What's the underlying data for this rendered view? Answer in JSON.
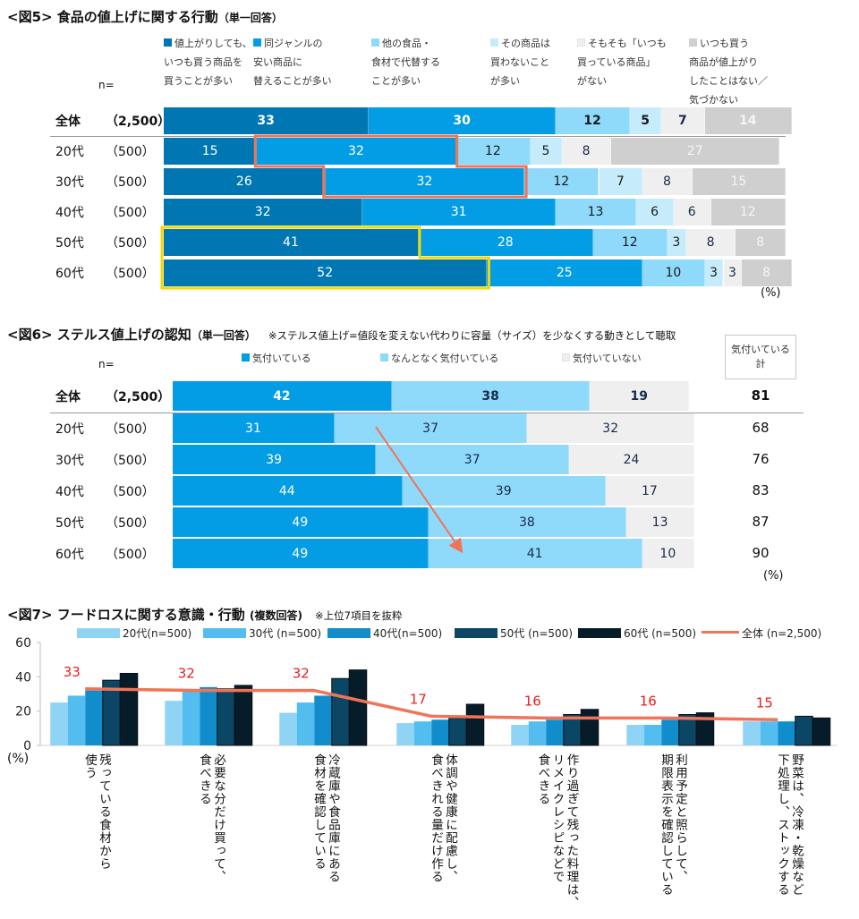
{
  "chart_data": [
    {
      "id": "fig5",
      "type": "bar",
      "orientation": "horizontal-stacked-100",
      "title": "<図5> 食品の値上げに関する行動",
      "subtitle": "（単一回答）",
      "n_label": "n=",
      "unit_label": "(%)",
      "legend": [
        {
          "label": "値上がりしても、\nいつも買う商品を\n買うことが多い",
          "color": "#0077b3"
        },
        {
          "label": "同ジャンルの\n安い商品に\n替えることが多い",
          "color": "#039de6"
        },
        {
          "label": "他の食品・\n食材で代替する\nことが多い",
          "color": "#8fd9fb"
        },
        {
          "label": "その商品は\n買わないこと\nが多い",
          "color": "#c6ecfc"
        },
        {
          "label": "そもそも「いつも\n買っている商品」\nがない",
          "color": "#efefef"
        },
        {
          "label": "いつも買う\n商品が値上がり\nしたことはない／\n気づかない",
          "color": "#cfcfcf"
        }
      ],
      "categories": [
        {
          "label": "全体",
          "n": "（2,500）",
          "bold": true
        },
        {
          "label": "20代",
          "n": "（500）"
        },
        {
          "label": "30代",
          "n": "（500）"
        },
        {
          "label": "40代",
          "n": "（500）"
        },
        {
          "label": "50代",
          "n": "（500）"
        },
        {
          "label": "60代",
          "n": "（500）"
        }
      ],
      "rows": [
        [
          33,
          30,
          12,
          5,
          7,
          14
        ],
        [
          15,
          32,
          12,
          5,
          8,
          27
        ],
        [
          26,
          32,
          12,
          7,
          8,
          15
        ],
        [
          32,
          31,
          13,
          6,
          6,
          12
        ],
        [
          41,
          28,
          12,
          3,
          8,
          8
        ],
        [
          52,
          25,
          10,
          3,
          3,
          8
        ]
      ],
      "label_colors": [
        "#ffffff",
        "#ffffff",
        "#1a1a1a",
        "#1a1a1a",
        "#1a2a4a",
        "#f5f5f5"
      ],
      "highlights": [
        {
          "series": 1,
          "rows": [
            1,
            2
          ],
          "color": "#f07457"
        },
        {
          "series": 0,
          "rows": [
            4,
            5
          ],
          "color": "#f5d800"
        }
      ],
      "xlim": [
        0,
        100
      ]
    },
    {
      "id": "fig6",
      "type": "bar",
      "orientation": "horizontal-stacked-100",
      "title": "<図6> ステルス値上げの認知",
      "subtitle": "（単一回答）",
      "note": "※ステルス値上げ=値段を変えない代わりに容量（サイズ）を少なくする動きとして聴取",
      "n_label": "n=",
      "unit_label": "(%)",
      "legend": [
        {
          "label": "気付いている",
          "color": "#039de6"
        },
        {
          "label": "なんとなく気付いている",
          "color": "#8fd9fb"
        },
        {
          "label": "気付いていない",
          "color": "#efefef"
        }
      ],
      "total_header": "気付いている\n計",
      "categories": [
        {
          "label": "全体",
          "n": "（2,500）",
          "bold": true
        },
        {
          "label": "20代",
          "n": "（500）"
        },
        {
          "label": "30代",
          "n": "（500）"
        },
        {
          "label": "40代",
          "n": "（500）"
        },
        {
          "label": "50代",
          "n": "（500）"
        },
        {
          "label": "60代",
          "n": "（500）"
        }
      ],
      "rows": [
        [
          42,
          38,
          19
        ],
        [
          31,
          37,
          32
        ],
        [
          39,
          37,
          24
        ],
        [
          44,
          39,
          17
        ],
        [
          49,
          38,
          13
        ],
        [
          49,
          41,
          10
        ]
      ],
      "totals": [
        81,
        68,
        76,
        83,
        87,
        90
      ],
      "label_colors": [
        "#ffffff",
        "#1a2a4a",
        "#1a2a4a"
      ],
      "annotation": {
        "type": "arrow",
        "from_row": 1,
        "to_row": 5,
        "series": 1,
        "color": "#f07457"
      },
      "xlim": [
        0,
        100
      ]
    },
    {
      "id": "fig7",
      "type": "bar",
      "title": "<図7> フードロスに関する意識・行動",
      "subtitle": "(複数回答)",
      "note": "※上位7項目を抜粋",
      "ylabel": "(%)",
      "ylim": [
        0,
        60
      ],
      "yticks": [
        0,
        20,
        40,
        60
      ],
      "categories": [
        "残っている食材から\n使う",
        "必要な分だけ買って、\n食べきる",
        "冷蔵庫や食品庫にある\n食材を確認している",
        "体調や健康に配慮し、\n食べきれる量だけ作る",
        "作り過ぎて残った料理は、\nリメイクレシピなどで\n食べきる",
        "利用予定と照らして、\n期限表示を確認している",
        "野菜は、冷凍・乾燥など\n下処理し、ストックする"
      ],
      "series": [
        {
          "name": "20代(n=500)",
          "color": "#8fd3f5",
          "values": [
            25,
            26,
            19,
            13,
            12,
            12,
            14
          ]
        },
        {
          "name": "30代 (n=500)",
          "color": "#53bdf0",
          "values": [
            29,
            32,
            25,
            14,
            14,
            12,
            14
          ]
        },
        {
          "name": "40代(n=500)",
          "color": "#128dcb",
          "values": [
            32,
            34,
            29,
            15,
            15,
            15,
            14
          ]
        },
        {
          "name": "50代 (n=500)",
          "color": "#0b4664",
          "values": [
            38,
            33,
            39,
            16,
            18,
            18,
            17
          ]
        },
        {
          "name": "60代 (n=500)",
          "color": "#061c29",
          "values": [
            42,
            35,
            44,
            24,
            21,
            19,
            16
          ]
        }
      ],
      "line": {
        "name": "全体 (n=2,500)",
        "color": "#f07457",
        "values": [
          33,
          32,
          32,
          17,
          16,
          16,
          15
        ],
        "label_color": "#ee1c1c"
      },
      "grid": false,
      "legend_position": "top"
    }
  ]
}
